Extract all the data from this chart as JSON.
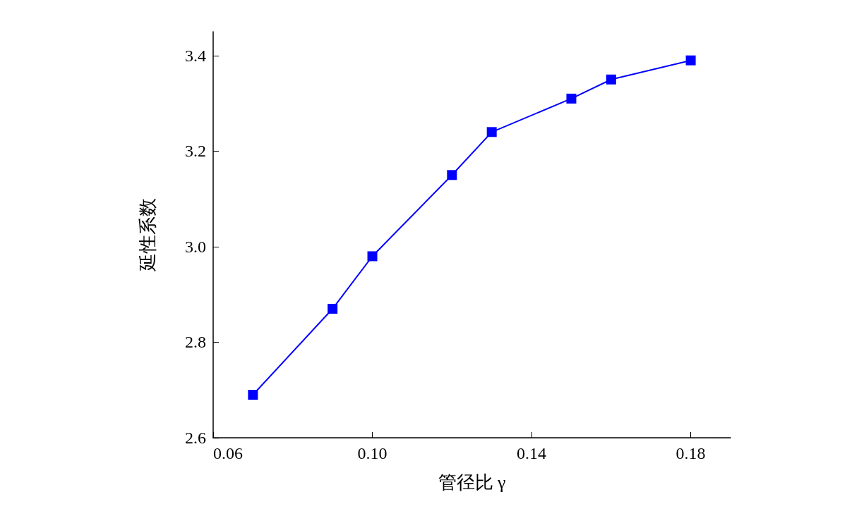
{
  "chart_data": {
    "type": "line",
    "xlabel": "管径比 γ",
    "ylabel": "延性系数",
    "x": [
      0.07,
      0.09,
      0.1,
      0.12,
      0.13,
      0.15,
      0.16,
      0.18
    ],
    "series": [
      {
        "color": "#0000ff",
        "values": [
          2.69,
          2.87,
          2.98,
          3.15,
          3.24,
          3.31,
          3.35,
          3.39
        ]
      }
    ],
    "xlim": [
      0.06,
      0.19
    ],
    "xticks": [
      0.06,
      {
        "value": 0.1,
        "label": "0.10"
      },
      0.14,
      0.18
    ],
    "ylim": [
      2.6,
      3.45
    ],
    "yticks": [
      2.6,
      2.8,
      {
        "value": 3,
        "label": "3.0"
      },
      3.2,
      3.4
    ],
    "grid": false,
    "marker": "square",
    "line_style": "solid"
  }
}
